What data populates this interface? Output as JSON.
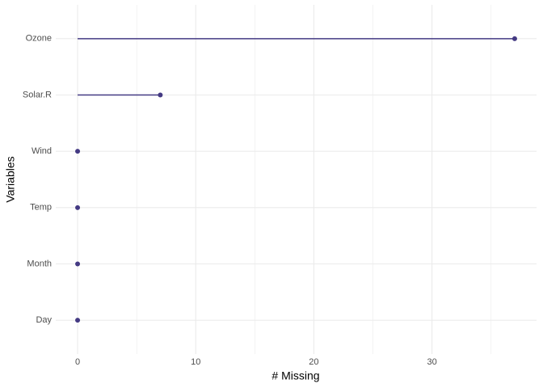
{
  "chart_data": {
    "type": "lollipop",
    "categories": [
      "Ozone",
      "Solar.R",
      "Wind",
      "Temp",
      "Month",
      "Day"
    ],
    "values": [
      37,
      7,
      0,
      0,
      0,
      0
    ],
    "color": "#443a83",
    "x_label": "# Missing",
    "y_label": "Variables",
    "xlim": [
      -1.85,
      38.85
    ],
    "xticks": [
      0,
      10,
      20,
      30
    ],
    "xminorticks": [
      5,
      15,
      25,
      35
    ],
    "grid": true
  }
}
